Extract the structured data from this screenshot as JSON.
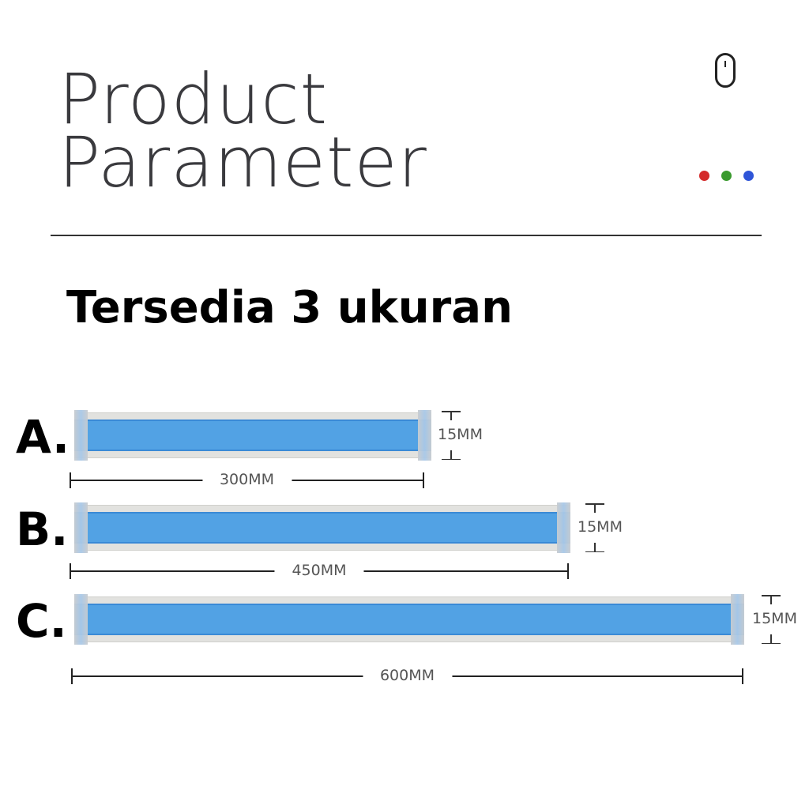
{
  "header": {
    "title_line1": "Product",
    "title_line2": "Parameter",
    "icon": "mouse-icon",
    "dots": [
      "#d42b2b",
      "#3a9a2e",
      "#2f55d8"
    ]
  },
  "subtitle": "Tersedia 3 ukuran",
  "sizes": [
    {
      "letter": "A.",
      "length_label": "300MM",
      "height_label": "15MM"
    },
    {
      "letter": "B.",
      "length_label": "450MM",
      "height_label": "15MM"
    },
    {
      "letter": "C.",
      "length_label": "600MM",
      "height_label": "15MM"
    }
  ],
  "colors": {
    "tube_blue": "#52a2e4",
    "tube_frame": "#e2e2df"
  }
}
